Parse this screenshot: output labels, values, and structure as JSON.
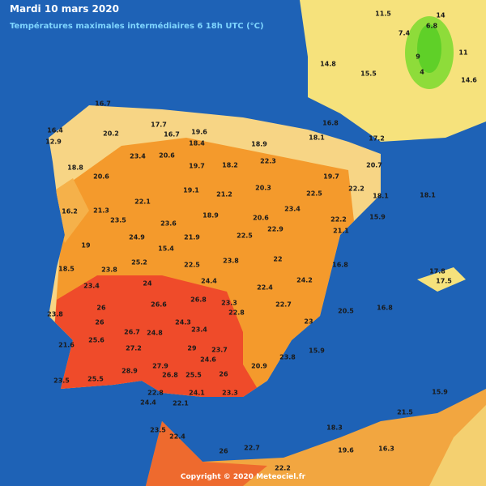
{
  "header": {
    "title": "Mardi 10 mars 2020",
    "subtitle": "Températures maximales intermédiaires 6 18h UTC (°C)"
  },
  "stations": [
    16.7,
    16.4,
    12.9,
    20.2,
    17.7,
    19.6,
    16.7,
    18.4,
    18.9,
    18.1,
    16.8,
    17.2,
    18.8,
    20.6,
    23.4,
    20.6,
    19.7,
    18.2,
    22.3,
    19.7,
    22.2,
    16.2,
    21.3,
    22.1,
    19.1,
    21.2,
    20.3,
    22.5,
    18.1,
    23.5,
    23.6,
    18.9,
    20.6,
    23.4,
    22.2,
    15.9,
    19,
    24.9,
    21.9,
    22.5,
    22.9,
    21.1,
    18.5,
    23.8,
    25.2,
    15.4,
    22.5,
    23.8,
    22,
    16.8,
    23.4,
    24,
    24.4,
    22.4,
    24.2,
    26,
    26.6,
    26.8,
    23.3,
    22.7,
    20.5,
    16.8,
    23.8,
    26,
    26.7,
    24.8,
    24.3,
    23.4,
    22.8,
    21.6,
    25.6,
    27.2,
    29,
    23.7,
    23,
    15.9,
    27.9,
    24.6,
    23.8,
    23.5,
    25.5,
    28.9,
    26.8,
    25.5,
    26,
    20.9,
    22.8,
    24.1,
    23.3,
    24.4,
    22.1,
    23.5,
    22.4,
    26,
    22.7,
    22.2,
    18.3,
    19.6,
    16.3,
    21.5,
    15.9,
    6.8,
    9,
    4,
    11,
    14.6,
    7.4,
    15.5,
    14.8,
    11.5,
    14,
    20.7,
    18.1,
    17.8,
    17.5
  ],
  "footer": "Copyright © 2020 Meteociel.fr"
}
